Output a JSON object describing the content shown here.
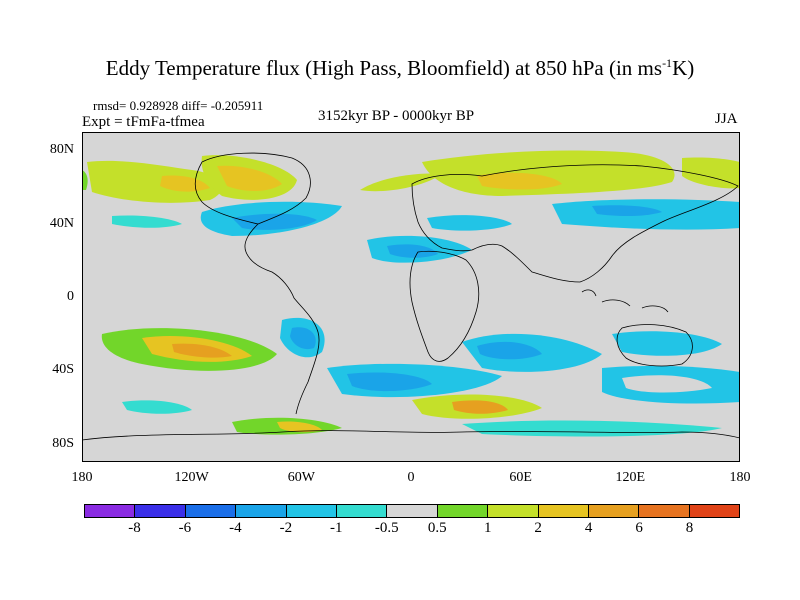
{
  "header": {
    "title_main": "Eddy Temperature flux (High Pass, Bloomfield) at 850 hPa (in ms",
    "title_sup": "-1",
    "title_end": "K)",
    "stats": "rmsd= 0.928928 diff= -0.205911",
    "expt": "Expt = tFmFa-tfmea",
    "period": "3152kyr BP - 0000kyr BP",
    "season": "JJA"
  },
  "axes": {
    "x_ticks": [
      "180",
      "120W",
      "60W",
      "0",
      "60E",
      "120E",
      "180"
    ],
    "y_ticks": [
      "80N",
      "40N",
      "0",
      "40S",
      "80S"
    ]
  },
  "colors": {
    "background": "#d6d6d6",
    "landline": "#000000"
  },
  "colorbar": {
    "colors": [
      "#8a2be2",
      "#3a2fe8",
      "#1a6ee8",
      "#1aa4e8",
      "#22c4e6",
      "#34dcd0",
      "#d6d6d6",
      "#72d62a",
      "#c4e02a",
      "#e6c422",
      "#e6a020",
      "#e67320",
      "#e04318"
    ],
    "labels": [
      "-8",
      "-6",
      "-4",
      "-2",
      "-1",
      "-0.5",
      "0.5",
      "1",
      "2",
      "4",
      "6",
      "8"
    ]
  }
}
